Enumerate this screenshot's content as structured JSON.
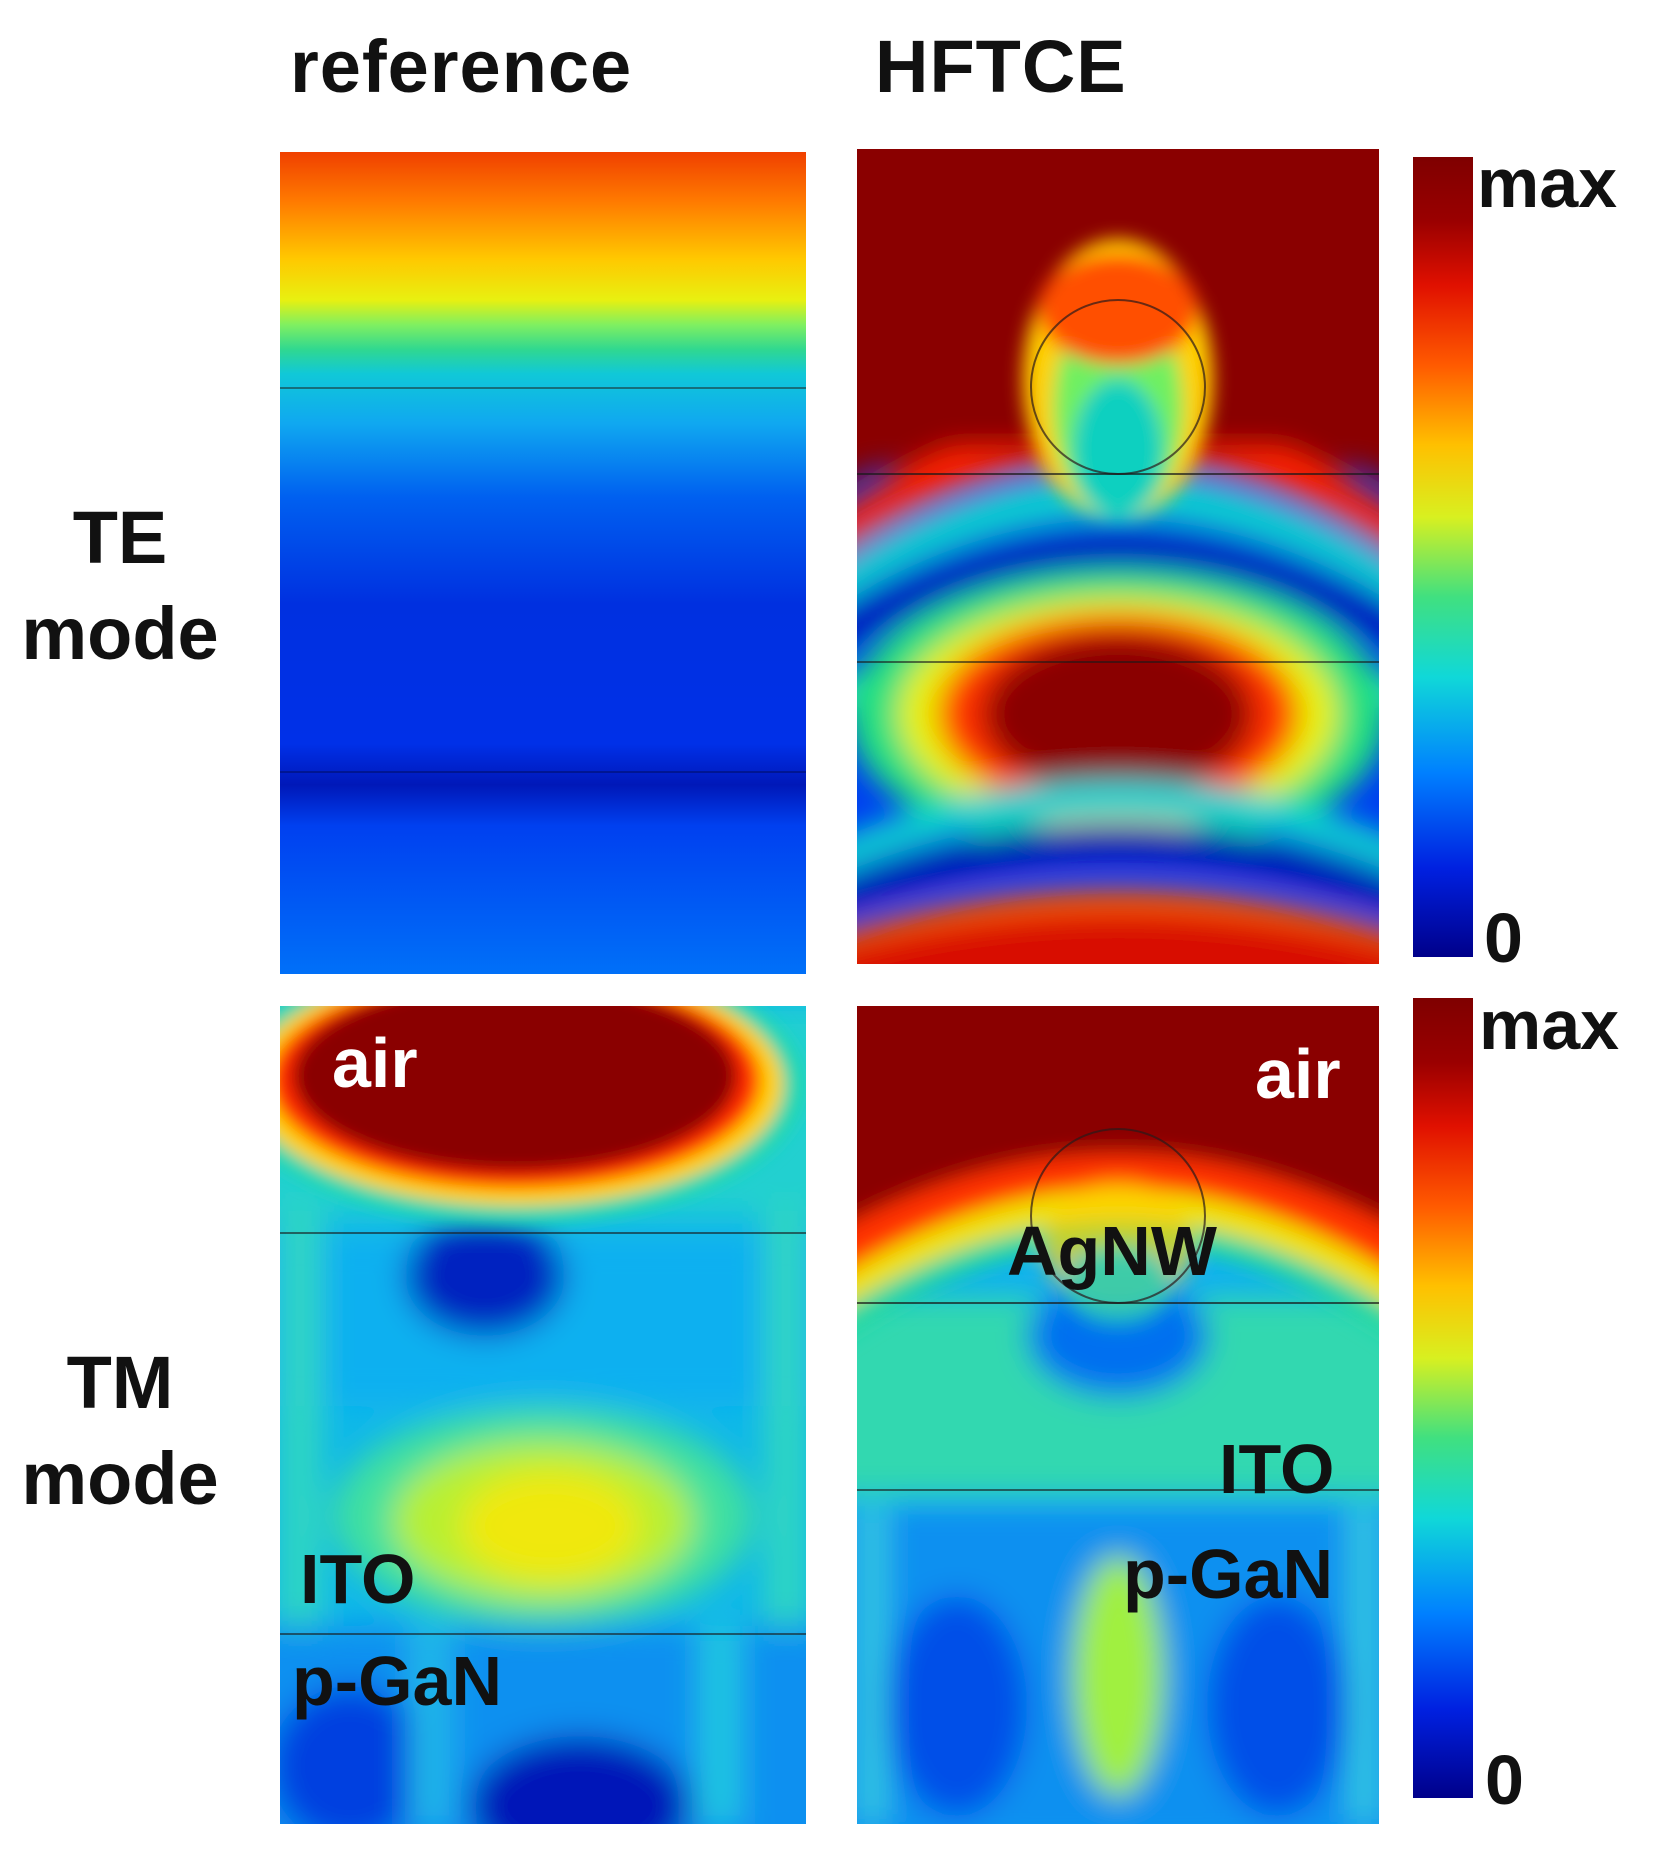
{
  "columns": {
    "reference": "reference",
    "hftce": "HFTCE"
  },
  "rows": {
    "te": [
      "TE",
      "mode"
    ],
    "tm": [
      "TM",
      "mode"
    ]
  },
  "layer_labels": {
    "air": "air",
    "agnw": "AgNW",
    "ito": "ITO",
    "pgan": "p-GaN"
  },
  "colorbar": {
    "max_label": "max",
    "min_label": "0"
  },
  "colors": {
    "darkred": "#7f0000",
    "red": "#ff1a00",
    "orange": "#ff8c00",
    "yellow": "#f0f000",
    "green": "#40e080",
    "cyan": "#10d8d8",
    "blue": "#0050ff",
    "darkblue": "#0010b0"
  }
}
